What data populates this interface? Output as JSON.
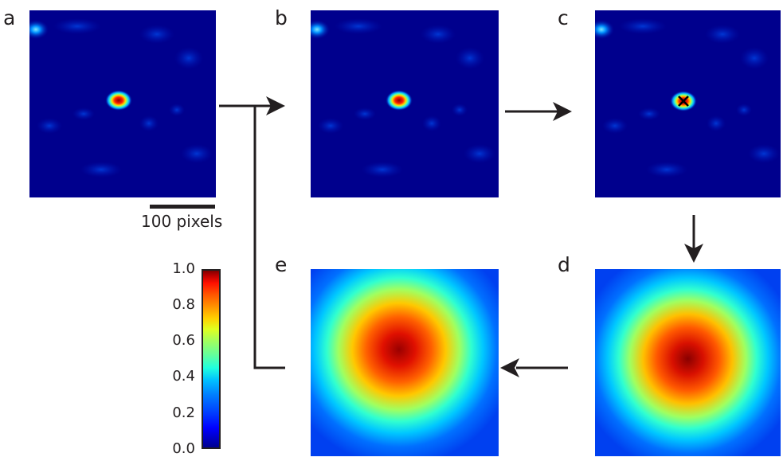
{
  "panels": {
    "a": "a",
    "b": "b",
    "c": "c",
    "d": "d",
    "e": "e"
  },
  "scalebar": {
    "label": "100 pixels"
  },
  "colorbar": {
    "ticks": [
      "1.0",
      "0.8",
      "0.6",
      "0.4",
      "0.2",
      "0.0"
    ],
    "range": [
      0.0,
      1.0
    ],
    "colormap": "jet"
  },
  "colors": {
    "background_field": "#00008d",
    "arrow": "#231f20",
    "marker": "#000000"
  }
}
